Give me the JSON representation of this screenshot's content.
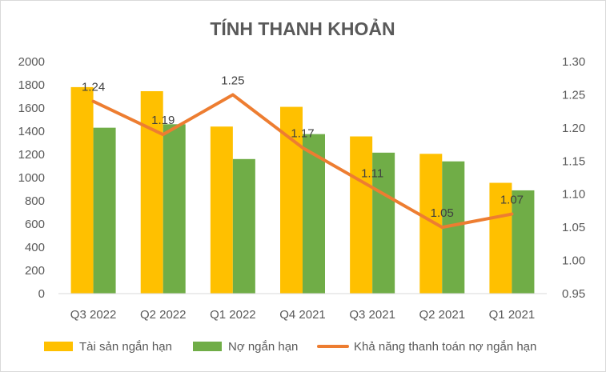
{
  "chart_data": {
    "type": "bar",
    "title": "TÍNH THANH KHOẢN",
    "categories": [
      "Q3 2022",
      "Q2 2022",
      "Q1 2022",
      "Q4 2021",
      "Q3 2021",
      "Q2 2021",
      "Q1 2021"
    ],
    "series": [
      {
        "name": "Tài sản ngắn hạn",
        "type": "bar",
        "axis": "left",
        "color": "#FFC000",
        "values": [
          1780,
          1745,
          1440,
          1610,
          1355,
          1205,
          955
        ]
      },
      {
        "name": "Nợ ngắn hạn",
        "type": "bar",
        "axis": "left",
        "color": "#70AD47",
        "values": [
          1430,
          1460,
          1160,
          1375,
          1215,
          1140,
          890
        ]
      },
      {
        "name": "Khả năng thanh toán nợ ngắn hạn",
        "type": "line",
        "axis": "right",
        "color": "#ED7D31",
        "values": [
          1.24,
          1.19,
          1.25,
          1.17,
          1.11,
          1.05,
          1.07
        ],
        "labels": [
          "1.24",
          "1.19",
          "1.25",
          "1.17",
          "1.11",
          "1.05",
          "1.07"
        ]
      }
    ],
    "y_left": {
      "min": 0,
      "max": 2000,
      "ticks": [
        "0",
        "200",
        "400",
        "600",
        "800",
        "1000",
        "1200",
        "1400",
        "1600",
        "1800",
        "2000"
      ]
    },
    "y_right": {
      "min": 0.95,
      "max": 1.3,
      "ticks": [
        "0.95",
        "1.00",
        "1.05",
        "1.10",
        "1.15",
        "1.20",
        "1.25",
        "1.30"
      ]
    },
    "legend_position": "bottom",
    "grid": false
  }
}
